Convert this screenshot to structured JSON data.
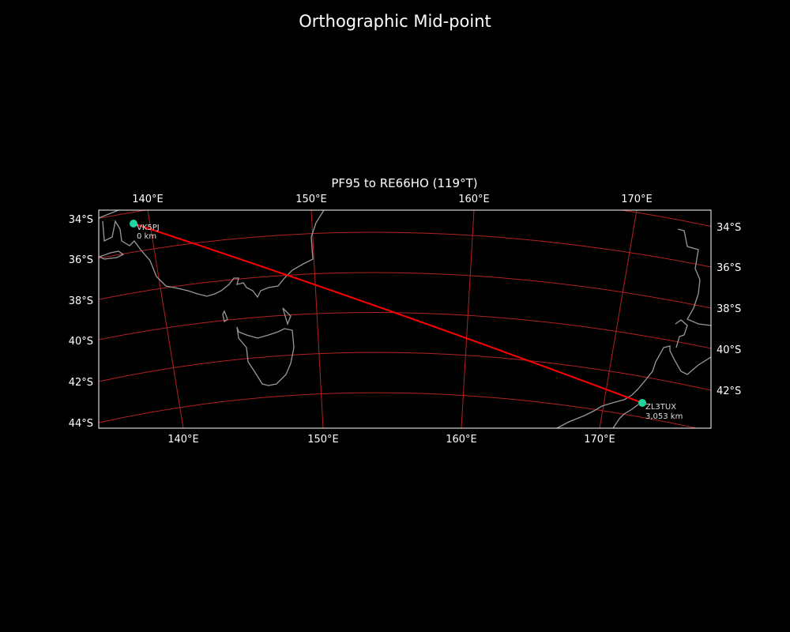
{
  "figure_title": "Orthographic Mid-point",
  "map": {
    "subtitle": "PF95 to RE66HO (119°T)",
    "projection": "orthographic",
    "colors": {
      "background": "#000000",
      "grid": "#b22222",
      "coast": "#999999",
      "path": "#ff0000",
      "marker": "#1fd4a0",
      "text": "#ffffff"
    },
    "top_lon_labels": [
      "140°E",
      "150°E",
      "160°E",
      "170°E"
    ],
    "bottom_lon_labels": [
      "140°E",
      "150°E",
      "160°E",
      "170°E"
    ],
    "left_lat_labels": [
      "34°S",
      "36°S",
      "38°S",
      "40°S",
      "42°S",
      "44°S"
    ],
    "right_lat_labels": [
      "34°S",
      "36°S",
      "38°S",
      "40°S",
      "42°S"
    ],
    "stations": [
      {
        "call": "VK5PJ",
        "distance": "0 km",
        "locator": "PF95"
      },
      {
        "call": "ZL3TUX",
        "distance": "3,053 km",
        "locator": "RE66HO"
      }
    ]
  }
}
